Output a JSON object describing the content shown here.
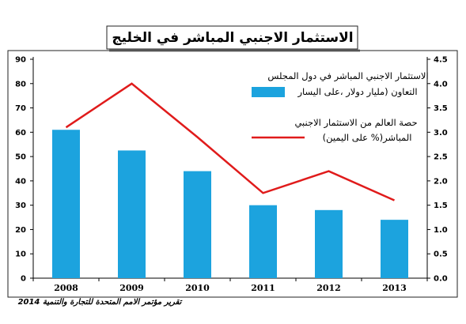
{
  "chart_data": {
    "type": "bar",
    "title": "الاستثمار الاجنبي المباشر في الخليج",
    "categories": [
      "2008",
      "2009",
      "2010",
      "2011",
      "2012",
      "2013"
    ],
    "left_axis": {
      "ylim": [
        0,
        90
      ],
      "ticks": [
        "0",
        "10",
        "20",
        "30",
        "40",
        "50",
        "60",
        "70",
        "80",
        "90"
      ]
    },
    "right_axis": {
      "ylim": [
        0,
        4.5
      ],
      "ticks": [
        "0.0",
        "0.5",
        "1.0",
        "1.5",
        "2.0",
        "2.5",
        "3.0",
        "3.5",
        "4.0",
        "4.5"
      ]
    },
    "series": [
      {
        "name_lines": [
          "الاستثمار  الاجنبي المباشر في دول المجلس",
          "التعاون (مليار دولار ،على اليسار"
        ],
        "type": "bar",
        "axis": "left",
        "color": "#1ca3de",
        "values": [
          61,
          52.5,
          44,
          30,
          28,
          24
        ]
      },
      {
        "name_lines": [
          "حصة العالم من الاستثمار الاجنبي",
          "المباشر(% على اليمين)"
        ],
        "type": "line",
        "axis": "right",
        "color": "#e01b1b",
        "values": [
          3.1,
          4.0,
          2.9,
          1.75,
          2.2,
          1.6
        ]
      }
    ],
    "grid": false,
    "legend_position": "top-right"
  },
  "source": "تقرير مؤتمر الامم المتحدة للتجارة والتنمية 2014"
}
